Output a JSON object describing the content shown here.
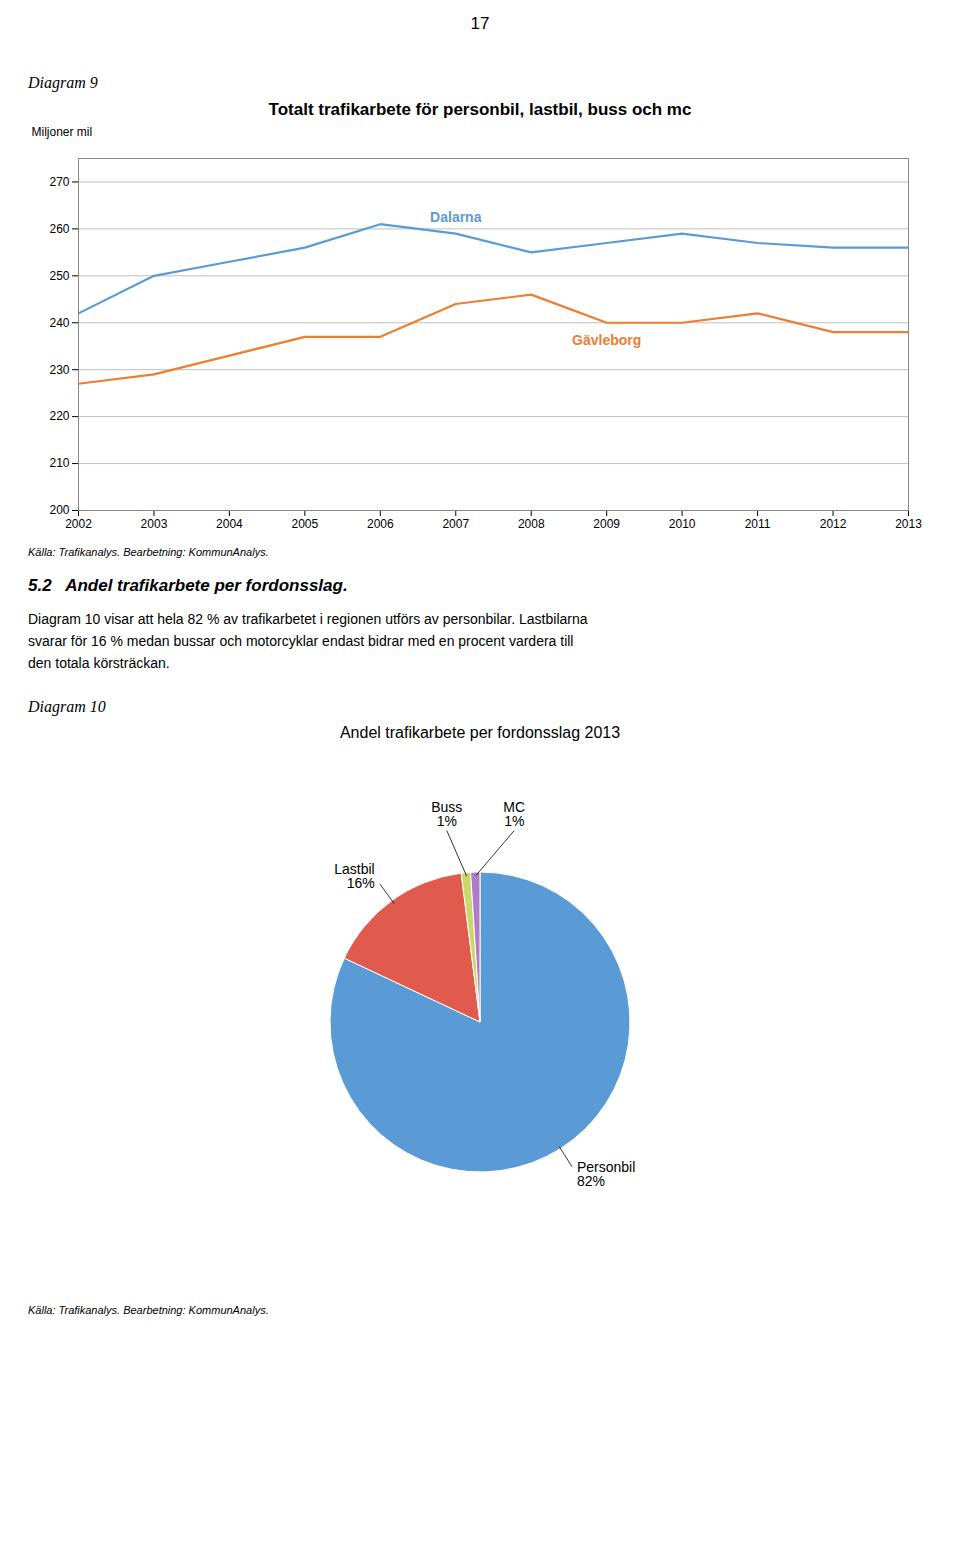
{
  "page_number": "17",
  "heading": "5.2   Andel trafikarbete per fordonsslag.",
  "paragraphs": [
    "Diagram 10 visar att hela 82 % av trafikarbetet i regionen utförs av personbilar. Lastbilarna",
    "svarar för 16 % medan bussar och motorcyklar endast bidrar med en procent vardera till",
    "den totala körsträckan."
  ],
  "chart_data": [
    {
      "type": "line",
      "label": "Diagram 9",
      "title": "Totalt trafikarbete för personbil, lastbil, buss och mc",
      "y_label": "Miljoner mil",
      "source": "Källa: Trafikanalys. Bearbetning: KommunAnalys.",
      "x": [
        2002,
        2003,
        2004,
        2005,
        2006,
        2007,
        2008,
        2009,
        2010,
        2011,
        2012,
        2013
      ],
      "series": [
        {
          "name": "Dalarna",
          "color": "#5B9BD5",
          "values": [
            242,
            250,
            253,
            256,
            261,
            259,
            255,
            257,
            259,
            257,
            256,
            256
          ]
        },
        {
          "name": "Gävleborg",
          "color": "#ED7D31",
          "values": [
            227,
            229,
            233,
            237,
            237,
            244,
            246,
            240,
            240,
            242,
            238,
            238
          ]
        }
      ],
      "xlim": [
        2002,
        2013
      ],
      "xticks": [
        2002,
        2003,
        2004,
        2005,
        2006,
        2007,
        2008,
        2009,
        2010,
        2011,
        2012,
        2013
      ],
      "ylim": [
        200,
        275
      ],
      "yticks": [
        200,
        210,
        220,
        230,
        240,
        250,
        260,
        270
      ],
      "grid": true
    },
    {
      "type": "pie",
      "label": "Diagram 10",
      "title": "Andel trafikarbete per fordonsslag 2013",
      "source": "Källa: Trafikanalys.  Bearbetning: KommunAnalys.",
      "categories": [
        "Personbil",
        "Lastbil",
        "Buss",
        "MC"
      ],
      "values": [
        82,
        16,
        1,
        1
      ],
      "value_labels": [
        "82%",
        "16%",
        "1%",
        "1%"
      ],
      "colors": [
        "#5B9BD5",
        "#E05A4E",
        "#C8D96A",
        "#B07CC6"
      ],
      "data_labels": true
    }
  ]
}
